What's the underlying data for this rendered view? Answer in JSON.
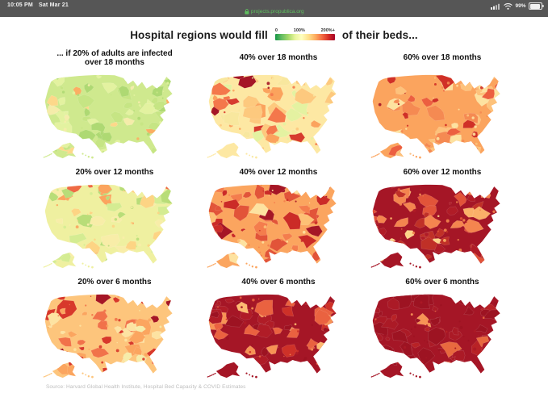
{
  "status_bar": {
    "time": "10:05 PM",
    "date": "Sat Mar 21",
    "url": "projects.propublica.org",
    "battery_percent": "99%",
    "bg_color": "#565656",
    "url_color": "#5fc05f",
    "icons": [
      "lock-icon",
      "cellular-signal-icon",
      "wifi-icon",
      "battery-icon"
    ]
  },
  "header": {
    "title_left": "Hospital regions would fill",
    "title_right": "of their beds...",
    "legend": {
      "label_min": "0",
      "label_mid": "100%",
      "label_max": "200%+",
      "gradient_colors": [
        "#169647",
        "#66bd63",
        "#a6d96a",
        "#e7f59d",
        "#ffffbf",
        "#fee08b",
        "#fdae61",
        "#f46d43",
        "#d73027",
        "#a50026"
      ]
    }
  },
  "maps": [
    {
      "title": "... if 20% of adults are infected over 18 months",
      "scenario": "20% infected / 18 months",
      "seed": 11,
      "base": "#cfe98e",
      "palette": [
        [
          "#aed973",
          0.28
        ],
        [
          "#c6e584",
          0.25
        ],
        [
          "#e3f2a0",
          0.2
        ],
        [
          "#f5ecaa",
          0.15
        ],
        [
          "#fdd88a",
          0.07
        ],
        [
          "#fbae63",
          0.04
        ],
        [
          "#e8604c",
          0.01
        ]
      ]
    },
    {
      "title": "40% over 18 months",
      "scenario": "40% infected / 18 months",
      "seed": 22,
      "base": "#fde8a3",
      "palette": [
        [
          "#e4f2a1",
          0.14
        ],
        [
          "#f8e79e",
          0.2
        ],
        [
          "#fdc97e",
          0.25
        ],
        [
          "#fba35d",
          0.21
        ],
        [
          "#f4784b",
          0.12
        ],
        [
          "#d73b2e",
          0.05
        ],
        [
          "#a51626",
          0.03
        ]
      ]
    },
    {
      "title": "60% over 18 months",
      "scenario": "60% infected / 18 months",
      "seed": 33,
      "base": "#fba45e",
      "palette": [
        [
          "#fde2a0",
          0.18
        ],
        [
          "#fdc27b",
          0.2
        ],
        [
          "#f58a52",
          0.22
        ],
        [
          "#ec5f40",
          0.18
        ],
        [
          "#d03027",
          0.14
        ],
        [
          "#a51626",
          0.08
        ]
      ]
    },
    {
      "title": "20% over 12 months",
      "scenario": "20% infected / 12 months",
      "seed": 44,
      "base": "#eff0a0",
      "palette": [
        [
          "#b8dd78",
          0.22
        ],
        [
          "#d4ec92",
          0.22
        ],
        [
          "#f8eda8",
          0.21
        ],
        [
          "#fdd484",
          0.2
        ],
        [
          "#fba45e",
          0.11
        ],
        [
          "#ef6a45",
          0.03
        ],
        [
          "#d03027",
          0.01
        ]
      ]
    },
    {
      "title": "40% over 12 months",
      "scenario": "40% infected / 12 months",
      "seed": 55,
      "base": "#fba55f",
      "palette": [
        [
          "#fde2a0",
          0.14
        ],
        [
          "#fdc075",
          0.15
        ],
        [
          "#f47d4d",
          0.22
        ],
        [
          "#e25439",
          0.18
        ],
        [
          "#cb2b27",
          0.17
        ],
        [
          "#a51626",
          0.14
        ]
      ]
    },
    {
      "title": "60% over 12 months",
      "scenario": "60% infected / 12 months",
      "seed": 66,
      "base": "#a51626",
      "palette": [
        [
          "#b01c27",
          0.25
        ],
        [
          "#c03027",
          0.15
        ],
        [
          "#e25439",
          0.15
        ],
        [
          "#f4854f",
          0.25
        ],
        [
          "#fbb068",
          0.15
        ],
        [
          "#fdd389",
          0.05
        ]
      ]
    },
    {
      "title": "20% over 6 months",
      "scenario": "20% infected / 6 months",
      "seed": 77,
      "base": "#fdc57c",
      "palette": [
        [
          "#fde3a2",
          0.2
        ],
        [
          "#fba55f",
          0.22
        ],
        [
          "#f1724a",
          0.2
        ],
        [
          "#d8382b",
          0.2
        ],
        [
          "#a51626",
          0.13
        ],
        [
          "#f6eca9",
          0.05
        ]
      ]
    },
    {
      "title": "40% over 6 months",
      "scenario": "40% infected / 6 months",
      "seed": 88,
      "base": "#a51626",
      "palette": [
        [
          "#9d1322",
          0.3
        ],
        [
          "#b01c27",
          0.2
        ],
        [
          "#ce3128",
          0.12
        ],
        [
          "#ea6240",
          0.18
        ],
        [
          "#f79355",
          0.15
        ],
        [
          "#fdbb71",
          0.05
        ]
      ]
    },
    {
      "title": "60% over 6 months",
      "scenario": "60% infected / 6 months",
      "seed": 99,
      "base": "#a51626",
      "palette": [
        [
          "#9d1322",
          0.5
        ],
        [
          "#ab1a26",
          0.35
        ],
        [
          "#b82226",
          0.08
        ],
        [
          "#e8693f",
          0.05
        ],
        [
          "#f79355",
          0.02
        ]
      ]
    }
  ],
  "footer": {
    "source": "Source: Harvard Global Health Institute, Hospital Bed Capacity & COVID Estimates"
  }
}
